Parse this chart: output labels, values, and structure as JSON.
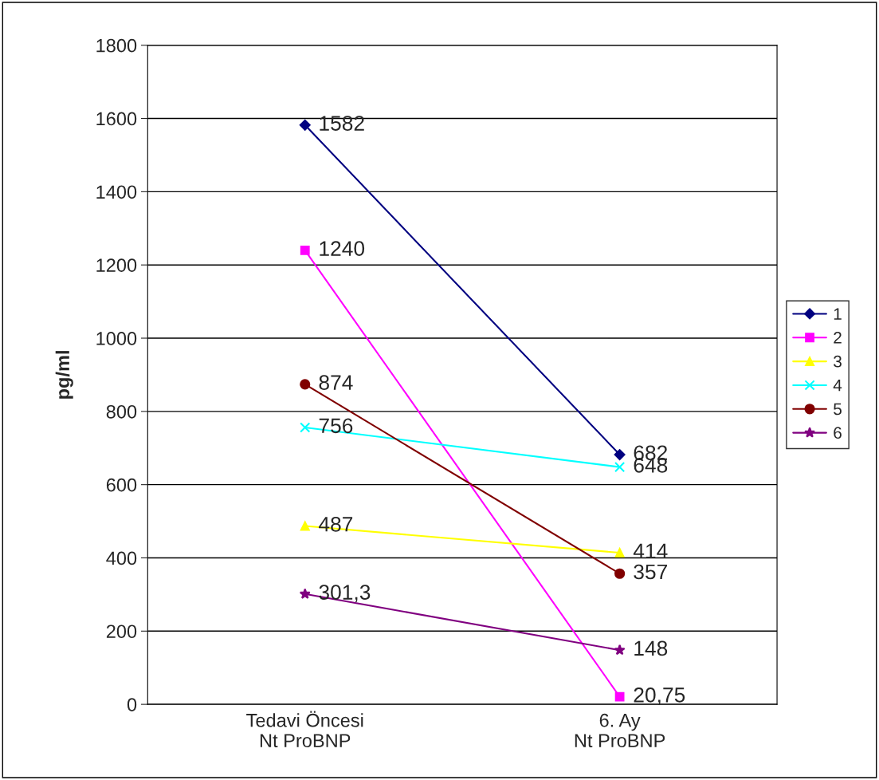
{
  "chart_data": {
    "type": "line",
    "ylabel": "pg/ml",
    "categories": [
      "Tedavi Öncesi\nNt ProBNP",
      "6. Ay\nNt ProBNP"
    ],
    "series": [
      {
        "name": "1",
        "color": "#000080",
        "marker": "diamond",
        "values": [
          1582,
          682
        ],
        "value_labels": [
          "1582",
          "682"
        ]
      },
      {
        "name": "2",
        "color": "#ff00ff",
        "marker": "square",
        "values": [
          1240,
          20.75
        ],
        "value_labels": [
          "1240",
          "20,75"
        ]
      },
      {
        "name": "3",
        "color": "#ffff00",
        "marker": "triangle",
        "values": [
          487,
          414
        ],
        "value_labels": [
          "487",
          "414"
        ]
      },
      {
        "name": "4",
        "color": "#00ffff",
        "marker": "cross",
        "values": [
          756,
          648
        ],
        "value_labels": [
          "756",
          "648"
        ]
      },
      {
        "name": "5",
        "color": "#800000",
        "marker": "circle",
        "values": [
          874,
          357
        ],
        "value_labels": [
          "874",
          "357"
        ]
      },
      {
        "name": "6",
        "color": "#800080",
        "marker": "star",
        "values": [
          301.3,
          148
        ],
        "value_labels": [
          "301,3",
          "148"
        ]
      }
    ],
    "ylim": [
      0,
      1800
    ],
    "yticks": [
      0,
      200,
      400,
      600,
      800,
      1000,
      1200,
      1400,
      1600,
      1800
    ],
    "grid": "y",
    "legend": "right",
    "line_style": "solid"
  }
}
